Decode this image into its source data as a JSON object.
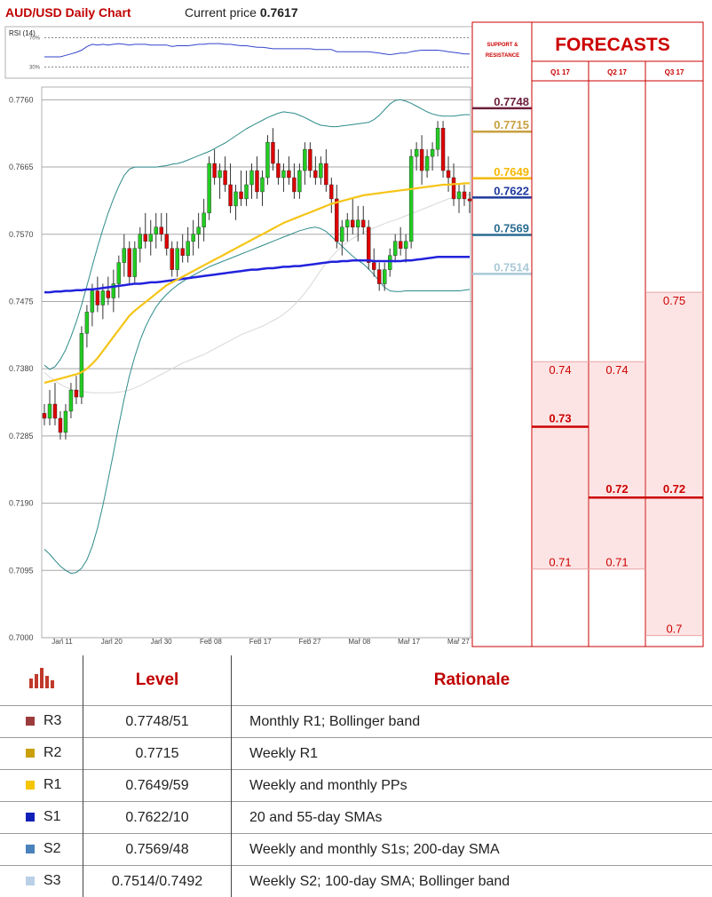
{
  "header": {
    "title": "AUD/USD Daily Chart",
    "price_label": "Current price",
    "price_value": "0.7617"
  },
  "chart_data": [
    {
      "type": "candlestick",
      "title": "AUD/USD Daily Chart",
      "y_ticks": [
        "0.7760",
        "0.7665",
        "0.7570",
        "0.7475",
        "0.7380",
        "0.7285",
        "0.7190",
        "0.7095",
        "0.7000"
      ],
      "ylim": [
        0.7,
        0.7778
      ],
      "x_ticks": [
        "Jan 11",
        "Jan 20",
        "Jan 30",
        "Feb 08",
        "Feb 17",
        "Feb 27",
        "Mar 08",
        "Mar 17",
        "Mar 27"
      ],
      "ohlc": [
        [
          0.7317,
          0.733,
          0.73,
          0.731
        ],
        [
          0.731,
          0.735,
          0.73,
          0.733
        ],
        [
          0.733,
          0.736,
          0.73,
          0.731
        ],
        [
          0.731,
          0.732,
          0.728,
          0.729
        ],
        [
          0.729,
          0.733,
          0.728,
          0.732
        ],
        [
          0.732,
          0.736,
          0.731,
          0.735
        ],
        [
          0.735,
          0.737,
          0.733,
          0.734
        ],
        [
          0.734,
          0.744,
          0.733,
          0.743
        ],
        [
          0.743,
          0.747,
          0.741,
          0.746
        ],
        [
          0.746,
          0.75,
          0.744,
          0.749
        ],
        [
          0.749,
          0.751,
          0.746,
          0.747
        ],
        [
          0.747,
          0.75,
          0.745,
          0.749
        ],
        [
          0.749,
          0.751,
          0.747,
          0.748
        ],
        [
          0.748,
          0.752,
          0.746,
          0.75
        ],
        [
          0.75,
          0.754,
          0.748,
          0.753
        ],
        [
          0.753,
          0.757,
          0.751,
          0.755
        ],
        [
          0.755,
          0.756,
          0.75,
          0.751
        ],
        [
          0.751,
          0.756,
          0.75,
          0.755
        ],
        [
          0.755,
          0.758,
          0.753,
          0.757
        ],
        [
          0.757,
          0.76,
          0.755,
          0.756
        ],
        [
          0.756,
          0.759,
          0.754,
          0.757
        ],
        [
          0.757,
          0.76,
          0.755,
          0.758
        ],
        [
          0.758,
          0.76,
          0.756,
          0.757
        ],
        [
          0.757,
          0.76,
          0.754,
          0.755
        ],
        [
          0.755,
          0.756,
          0.751,
          0.752
        ],
        [
          0.752,
          0.756,
          0.751,
          0.755
        ],
        [
          0.755,
          0.757,
          0.753,
          0.754
        ],
        [
          0.754,
          0.758,
          0.753,
          0.756
        ],
        [
          0.756,
          0.759,
          0.754,
          0.757
        ],
        [
          0.757,
          0.76,
          0.755,
          0.758
        ],
        [
          0.758,
          0.762,
          0.756,
          0.76
        ],
        [
          0.76,
          0.768,
          0.759,
          0.767
        ],
        [
          0.767,
          0.769,
          0.764,
          0.765
        ],
        [
          0.765,
          0.767,
          0.762,
          0.766
        ],
        [
          0.766,
          0.768,
          0.763,
          0.764
        ],
        [
          0.764,
          0.767,
          0.76,
          0.761
        ],
        [
          0.761,
          0.764,
          0.759,
          0.763
        ],
        [
          0.763,
          0.766,
          0.761,
          0.762
        ],
        [
          0.762,
          0.766,
          0.761,
          0.764
        ],
        [
          0.764,
          0.767,
          0.762,
          0.766
        ],
        [
          0.766,
          0.768,
          0.762,
          0.763
        ],
        [
          0.763,
          0.766,
          0.761,
          0.765
        ],
        [
          0.765,
          0.771,
          0.764,
          0.77
        ],
        [
          0.77,
          0.772,
          0.766,
          0.767
        ],
        [
          0.767,
          0.769,
          0.764,
          0.765
        ],
        [
          0.765,
          0.767,
          0.763,
          0.766
        ],
        [
          0.766,
          0.768,
          0.764,
          0.765
        ],
        [
          0.765,
          0.767,
          0.762,
          0.763
        ],
        [
          0.763,
          0.767,
          0.762,
          0.766
        ],
        [
          0.766,
          0.77,
          0.764,
          0.769
        ],
        [
          0.769,
          0.77,
          0.765,
          0.766
        ],
        [
          0.766,
          0.768,
          0.764,
          0.765
        ],
        [
          0.765,
          0.768,
          0.764,
          0.767
        ],
        [
          0.767,
          0.769,
          0.763,
          0.764
        ],
        [
          0.764,
          0.765,
          0.76,
          0.762
        ],
        [
          0.762,
          0.764,
          0.755,
          0.756
        ],
        [
          0.756,
          0.759,
          0.754,
          0.758
        ],
        [
          0.758,
          0.76,
          0.756,
          0.759
        ],
        [
          0.759,
          0.762,
          0.757,
          0.758
        ],
        [
          0.758,
          0.761,
          0.756,
          0.759
        ],
        [
          0.759,
          0.761,
          0.757,
          0.758
        ],
        [
          0.758,
          0.759,
          0.752,
          0.753
        ],
        [
          0.753,
          0.755,
          0.751,
          0.752
        ],
        [
          0.752,
          0.753,
          0.749,
          0.75
        ],
        [
          0.75,
          0.753,
          0.749,
          0.752
        ],
        [
          0.752,
          0.755,
          0.751,
          0.754
        ],
        [
          0.754,
          0.757,
          0.753,
          0.756
        ],
        [
          0.756,
          0.758,
          0.754,
          0.755
        ],
        [
          0.755,
          0.757,
          0.753,
          0.756
        ],
        [
          0.756,
          0.769,
          0.755,
          0.768
        ],
        [
          0.768,
          0.77,
          0.766,
          0.769
        ],
        [
          0.769,
          0.771,
          0.764,
          0.766
        ],
        [
          0.766,
          0.769,
          0.765,
          0.768
        ],
        [
          0.768,
          0.77,
          0.766,
          0.769
        ],
        [
          0.769,
          0.773,
          0.768,
          0.772
        ],
        [
          0.772,
          0.773,
          0.765,
          0.766
        ],
        [
          0.766,
          0.768,
          0.763,
          0.765
        ],
        [
          0.765,
          0.767,
          0.761,
          0.762
        ],
        [
          0.762,
          0.764,
          0.76,
          0.763
        ],
        [
          0.763,
          0.764,
          0.761,
          0.762
        ],
        [
          0.762,
          0.763,
          0.76,
          0.7617
        ]
      ],
      "sma_20": [
        0.736,
        0.7362,
        0.7364,
        0.7366,
        0.7368,
        0.737,
        0.7372,
        0.7375,
        0.738,
        0.7387,
        0.7395,
        0.7405,
        0.7415,
        0.7425,
        0.7435,
        0.7445,
        0.7455,
        0.7462,
        0.7468,
        0.7474,
        0.748,
        0.7486,
        0.7492,
        0.7498,
        0.7502,
        0.7506,
        0.751,
        0.7514,
        0.7518,
        0.7522,
        0.7526,
        0.753,
        0.7534,
        0.7538,
        0.7542,
        0.7546,
        0.755,
        0.7554,
        0.7558,
        0.7562,
        0.7566,
        0.757,
        0.7574,
        0.7578,
        0.7582,
        0.7586,
        0.7589,
        0.7592,
        0.7595,
        0.7598,
        0.7601,
        0.7604,
        0.7607,
        0.761,
        0.7613,
        0.7615,
        0.7617,
        0.7619,
        0.7621,
        0.7623,
        0.7625,
        0.7626,
        0.7627,
        0.7628,
        0.7629,
        0.763,
        0.7631,
        0.7632,
        0.7633,
        0.7634,
        0.7635,
        0.7636,
        0.7637,
        0.7638,
        0.7639,
        0.764,
        0.764,
        0.7641,
        0.7641,
        0.7642,
        0.7642
      ],
      "sma_55": [
        0.7488,
        0.7488,
        0.7489,
        0.7489,
        0.749,
        0.749,
        0.7491,
        0.7491,
        0.7492,
        0.7492,
        0.7493,
        0.7494,
        0.7495,
        0.7496,
        0.7497,
        0.7498,
        0.7499,
        0.75,
        0.75,
        0.7501,
        0.7502,
        0.7502,
        0.7503,
        0.7504,
        0.7505,
        0.7506,
        0.7507,
        0.7508,
        0.7509,
        0.751,
        0.7511,
        0.7512,
        0.7513,
        0.7514,
        0.7515,
        0.7516,
        0.7517,
        0.7518,
        0.7519,
        0.752,
        0.752,
        0.7521,
        0.7522,
        0.7522,
        0.7523,
        0.7524,
        0.7524,
        0.7525,
        0.7525,
        0.7526,
        0.7527,
        0.7528,
        0.7529,
        0.753,
        0.7531,
        0.7531,
        0.7532,
        0.7532,
        0.7533,
        0.7533,
        0.7533,
        0.7533,
        0.7532,
        0.7532,
        0.7532,
        0.7532,
        0.7532,
        0.7532,
        0.7533,
        0.7533,
        0.7534,
        0.7535,
        0.7536,
        0.7537,
        0.7538,
        0.7538,
        0.7538,
        0.7538,
        0.7538,
        0.7538,
        0.7538
      ],
      "sma_100": [
        0.7375,
        0.7368,
        0.7363,
        0.7358,
        0.7354,
        0.7351,
        0.7349,
        0.7348,
        0.7347,
        0.7346,
        0.7346,
        0.7346,
        0.7346,
        0.7346,
        0.7347,
        0.7348,
        0.735,
        0.7353,
        0.7356,
        0.736,
        0.7364,
        0.7368,
        0.7372,
        0.7376,
        0.738,
        0.7384,
        0.7388,
        0.7391,
        0.7394,
        0.7397,
        0.74,
        0.7404,
        0.7408,
        0.7412,
        0.7416,
        0.742,
        0.7424,
        0.7428,
        0.7431,
        0.7434,
        0.7437,
        0.744,
        0.7444,
        0.7448,
        0.7452,
        0.7457,
        0.7463,
        0.747,
        0.7478,
        0.7487,
        0.7497,
        0.7508,
        0.7519,
        0.7529,
        0.7538,
        0.7546,
        0.7553,
        0.7559,
        0.7564,
        0.7568,
        0.7572,
        0.7576,
        0.7579,
        0.7582,
        0.7585,
        0.7588,
        0.759,
        0.7593,
        0.7596,
        0.7599,
        0.7602,
        0.7605,
        0.7608,
        0.7611,
        0.7614,
        0.7617,
        0.762,
        0.7622,
        0.7624,
        0.7625,
        0.7626
      ],
      "bb_upper": [
        0.7385,
        0.7379,
        0.7383,
        0.7393,
        0.7407,
        0.7425,
        0.7446,
        0.747,
        0.7497,
        0.7525,
        0.7552,
        0.7577,
        0.76,
        0.762,
        0.7638,
        0.7653,
        0.7662,
        0.7665,
        0.7665,
        0.7665,
        0.7665,
        0.7665,
        0.7666,
        0.7667,
        0.7669,
        0.767,
        0.7672,
        0.7675,
        0.7678,
        0.7681,
        0.7684,
        0.7687,
        0.7691,
        0.7695,
        0.7699,
        0.7704,
        0.7709,
        0.7714,
        0.7719,
        0.7723,
        0.7727,
        0.7731,
        0.7735,
        0.7738,
        0.7741,
        0.7743,
        0.7742,
        0.7741,
        0.7738,
        0.7735,
        0.7731,
        0.7727,
        0.7724,
        0.7723,
        0.7722,
        0.7722,
        0.7723,
        0.7724,
        0.7725,
        0.7726,
        0.7727,
        0.7728,
        0.7732,
        0.7738,
        0.7746,
        0.7754,
        0.7759,
        0.776,
        0.7758,
        0.7755,
        0.7751,
        0.7747,
        0.7743,
        0.774,
        0.7738,
        0.7737,
        0.7737,
        0.7737,
        0.7738,
        0.7739,
        0.7739
      ],
      "bb_lower": [
        0.7125,
        0.7118,
        0.7109,
        0.7101,
        0.7095,
        0.7091,
        0.7092,
        0.7098,
        0.711,
        0.7129,
        0.7155,
        0.7187,
        0.7223,
        0.7261,
        0.73,
        0.7337,
        0.737,
        0.7397,
        0.742,
        0.7439,
        0.7454,
        0.7467,
        0.7477,
        0.7485,
        0.7492,
        0.7498,
        0.7503,
        0.7508,
        0.7512,
        0.7516,
        0.752,
        0.7524,
        0.7527,
        0.753,
        0.7533,
        0.7536,
        0.7539,
        0.7542,
        0.7545,
        0.7548,
        0.7551,
        0.7554,
        0.7557,
        0.756,
        0.7563,
        0.7566,
        0.7569,
        0.7572,
        0.7575,
        0.7577,
        0.7579,
        0.758,
        0.7578,
        0.7574,
        0.7567,
        0.756,
        0.7553,
        0.7546,
        0.7539,
        0.7533,
        0.7528,
        0.7521,
        0.7513,
        0.7504,
        0.7495,
        0.749,
        0.7489,
        0.7489,
        0.749,
        0.749,
        0.749,
        0.749,
        0.749,
        0.749,
        0.749,
        0.749,
        0.749,
        0.749,
        0.749,
        0.7491,
        0.7492
      ],
      "bb_colour": "#2e8b8b",
      "candle_up_colour": "#22cc22",
      "candle_down_colour": "#dd0000",
      "sma_20_colour": "#f5c518",
      "sma_55_colour": "#2222dd",
      "sma_100_colour": "#d8d8d8"
    },
    {
      "type": "line",
      "title": "RSI (14)",
      "y_ticks": [
        "70%",
        "30%"
      ],
      "ylim": [
        15,
        85
      ],
      "series_colour": "#3344cc",
      "values": [
        44,
        44,
        44,
        44,
        46,
        48,
        50,
        53,
        58,
        61,
        60,
        61,
        60,
        61,
        62,
        61,
        60,
        61,
        61,
        61,
        60,
        60,
        60,
        60,
        58,
        59,
        59,
        59,
        60,
        61,
        61,
        62,
        62,
        62,
        61,
        61,
        60,
        59,
        59,
        58,
        57,
        57,
        56,
        55,
        55,
        55,
        55,
        55,
        55,
        55,
        55,
        54,
        54,
        54,
        54,
        51,
        51,
        51,
        51,
        51,
        51,
        51,
        50,
        49,
        48,
        47,
        48,
        49,
        49,
        51,
        52,
        53,
        53,
        53,
        53,
        52,
        51,
        50,
        49,
        48,
        48
      ]
    }
  ],
  "sr_panel": {
    "header": "SUPPORT & RESISTANCE",
    "levels": [
      {
        "label": "0.7748",
        "value": 0.7748,
        "colour": "#6b1e3b"
      },
      {
        "label": "0.7715",
        "value": 0.7715,
        "colour": "#c9a040"
      },
      {
        "label": "0.7649",
        "value": 0.7649,
        "colour": "#f5b800"
      },
      {
        "label": "0.7622",
        "value": 0.7622,
        "colour": "#1f3a9e"
      },
      {
        "label": "0.7569",
        "value": 0.7569,
        "colour": "#2b6c91"
      },
      {
        "label": "0.7514",
        "value": 0.7514,
        "colour": "#a9c9d6"
      }
    ]
  },
  "forecasts": {
    "title": "FORECASTS",
    "quarters": [
      {
        "label": "Q1 17",
        "high": "0.74",
        "mid": "0.73",
        "low": "0.71",
        "high_v": 0.739,
        "mid_v": 0.7298,
        "low_v": 0.7097
      },
      {
        "label": "Q2 17",
        "high": "0.74",
        "mid": "0.72",
        "low": "0.71",
        "high_v": 0.739,
        "mid_v": 0.7198,
        "low_v": 0.7097
      },
      {
        "label": "Q3 17",
        "high": "0.75",
        "mid": "0.72",
        "low": "0.7",
        "high_v": 0.7488,
        "mid_v": 0.7198,
        "low_v": 0.7003
      }
    ],
    "band_colour": "#fde4e4",
    "accent": "#cc0000"
  },
  "table": {
    "headers": {
      "level": "Level",
      "rationale": "Rationale"
    },
    "rows": [
      {
        "name": "R3",
        "level": "0.7748/51",
        "rationale": "Monthly R1; Bollinger band",
        "swatch": "#9b3b3b"
      },
      {
        "name": "R2",
        "level": "0.7715",
        "rationale": "Weekly R1",
        "swatch": "#c9a00a"
      },
      {
        "name": "R1",
        "level": "0.7649/59",
        "rationale": "Weekly and monthly PPs",
        "swatch": "#f5c500"
      },
      {
        "name": "S1",
        "level": "0.7622/10",
        "rationale": "20 and 55-day SMAs",
        "swatch": "#1020b8"
      },
      {
        "name": "S2",
        "level": "0.7569/48",
        "rationale": "Weekly and monthly S1s; 200-day SMA",
        "swatch": "#4a82bb"
      },
      {
        "name": "S3",
        "level": "0.7514/0.7492",
        "rationale": "Weekly S2; 100-day SMA; Bollinger band",
        "swatch": "#b9d0e6"
      }
    ]
  }
}
